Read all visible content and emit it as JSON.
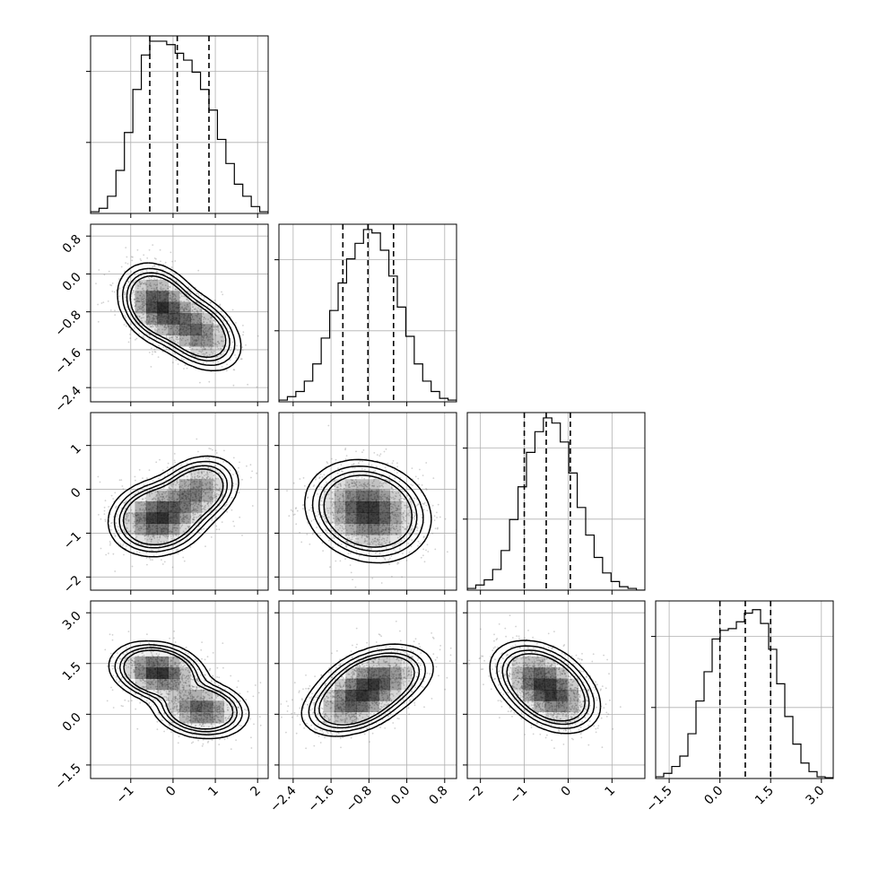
{
  "chart_data": {
    "type": "corner",
    "parameters": [
      {
        "range": [
          -1.95,
          2.25
        ],
        "ticks": [
          -1,
          0,
          1,
          2
        ],
        "ticklabels": [
          "−1",
          "0",
          "1",
          "2"
        ],
        "quantiles": [
          -0.55,
          0.1,
          0.85
        ],
        "hist": [
          0.01,
          0.03,
          0.1,
          0.25,
          0.47,
          0.72,
          0.92,
          1.0,
          1.0,
          0.98,
          0.93,
          0.89,
          0.82,
          0.72,
          0.6,
          0.43,
          0.29,
          0.17,
          0.1,
          0.04,
          0.01
        ]
      },
      {
        "range": [
          -2.7,
          1.05
        ],
        "ticks": [
          -2.4,
          -1.6,
          -0.8,
          0.0,
          0.8
        ],
        "ticklabels": [
          "−2.4",
          "−1.6",
          "−0.8",
          "0.0",
          "0.8"
        ],
        "quantiles": [
          -1.35,
          -0.82,
          -0.28
        ],
        "hist": [
          0.01,
          0.03,
          0.06,
          0.12,
          0.22,
          0.37,
          0.53,
          0.69,
          0.83,
          0.92,
          1.0,
          0.98,
          0.88,
          0.73,
          0.55,
          0.38,
          0.22,
          0.12,
          0.06,
          0.02,
          0.01
        ]
      },
      {
        "range": [
          -2.3,
          1.75
        ],
        "ticks": [
          -2,
          -1,
          0,
          1
        ],
        "ticklabels": [
          "−2",
          "−1",
          "0",
          "1"
        ],
        "quantiles": [
          -1.0,
          -0.5,
          0.05
        ],
        "hist": [
          0.01,
          0.03,
          0.06,
          0.12,
          0.23,
          0.41,
          0.6,
          0.8,
          0.92,
          1.0,
          0.97,
          0.86,
          0.68,
          0.48,
          0.32,
          0.19,
          0.1,
          0.05,
          0.02,
          0.01,
          0.0
        ]
      },
      {
        "range": [
          -1.9,
          3.35
        ],
        "ticks": [
          -1.5,
          0.0,
          1.5,
          3.0
        ],
        "ticklabels": [
          "−1.5",
          "0.0",
          "1.5",
          "3.0"
        ],
        "quantiles": [
          0.0,
          0.75,
          1.5
        ],
        "hist": [
          0.01,
          0.03,
          0.07,
          0.13,
          0.26,
          0.45,
          0.62,
          0.81,
          0.86,
          0.87,
          0.91,
          0.96,
          0.98,
          0.9,
          0.75,
          0.55,
          0.36,
          0.2,
          0.09,
          0.04,
          0.01,
          0.005
        ]
      }
    ],
    "hist_ylim": [
      0,
      1.0
    ],
    "hist_grid_y": [
      0.4,
      0.8
    ],
    "pairs": [
      {
        "x": 0,
        "y": 1,
        "modes": [
          {
            "mx": -0.35,
            "my": -0.65,
            "s1": 0.42,
            "s2": 0.32,
            "ang": -35,
            "w": 0.55
          },
          {
            "mx": 0.55,
            "my": -1.2,
            "s1": 0.48,
            "s2": 0.3,
            "ang": -30,
            "w": 0.45
          }
        ],
        "contour_levels": [
          1.0,
          0.7,
          0.42,
          0.2
        ]
      },
      {
        "x": 0,
        "y": 2,
        "modes": [
          {
            "mx": -0.35,
            "my": -0.65,
            "s1": 0.48,
            "s2": 0.35,
            "ang": 10,
            "w": 0.6
          },
          {
            "mx": 0.55,
            "my": -0.05,
            "s1": 0.45,
            "s2": 0.32,
            "ang": 25,
            "w": 0.4
          }
        ],
        "contour_levels": [
          1.0,
          0.7,
          0.42,
          0.2
        ]
      },
      {
        "x": 0,
        "y": 3,
        "modes": [
          {
            "mx": -0.35,
            "my": 1.25,
            "s1": 0.48,
            "s2": 0.35,
            "ang": -20,
            "w": 0.55
          },
          {
            "mx": 0.65,
            "my": 0.15,
            "s1": 0.48,
            "s2": 0.35,
            "ang": -15,
            "w": 0.45
          }
        ],
        "contour_levels": [
          1.0,
          0.7,
          0.42,
          0.2
        ]
      },
      {
        "x": 1,
        "y": 2,
        "modes": [
          {
            "mx": -0.82,
            "my": -0.5,
            "s1": 0.55,
            "s2": 0.45,
            "ang": -25,
            "w": 1.0
          }
        ],
        "contour_levels": [
          1.0,
          0.7,
          0.42,
          0.2
        ]
      },
      {
        "x": 1,
        "y": 3,
        "modes": [
          {
            "mx": -0.65,
            "my": 1.0,
            "s1": 0.55,
            "s2": 0.38,
            "ang": 35,
            "w": 0.55
          },
          {
            "mx": -1.15,
            "my": 0.3,
            "s1": 0.5,
            "s2": 0.35,
            "ang": 35,
            "w": 0.45
          }
        ],
        "contour_levels": [
          1.0,
          0.7,
          0.42,
          0.2
        ]
      },
      {
        "x": 2,
        "y": 3,
        "modes": [
          {
            "mx": -0.65,
            "my": 1.05,
            "s1": 0.55,
            "s2": 0.4,
            "ang": -45,
            "w": 0.55
          },
          {
            "mx": -0.3,
            "my": 0.45,
            "s1": 0.5,
            "s2": 0.38,
            "ang": -45,
            "w": 0.45
          }
        ],
        "contour_levels": [
          1.0,
          0.7,
          0.42,
          0.2
        ]
      }
    ],
    "grid": true,
    "style": {
      "sample_color": "#7a7a7a",
      "density_color": "#000000",
      "line_color": "#000000"
    }
  }
}
